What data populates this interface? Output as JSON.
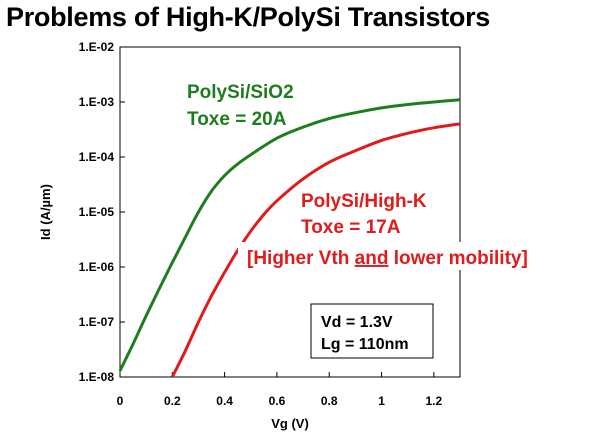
{
  "title": "Problems of High-K/PolySi Transistors",
  "chart_data": {
    "type": "line",
    "xlabel": "Vg (V)",
    "ylabel": "Id (A/µm)",
    "xlim": [
      0,
      1.3
    ],
    "ylim": [
      1e-08,
      0.01
    ],
    "yscale": "log",
    "grid": false,
    "x_ticks": [
      0,
      0.2,
      0.4,
      0.6,
      0.8,
      1,
      1.2
    ],
    "x_tick_labels": [
      "0",
      "0.2",
      "0.4",
      "0.6",
      "0.8",
      "1",
      "1.2"
    ],
    "y_ticks": [
      1e-08,
      1e-07,
      1e-06,
      1e-05,
      0.0001,
      0.001,
      0.01
    ],
    "y_tick_labels": [
      "1.E-08",
      "1.E-07",
      "1.E-06",
      "1.E-05",
      "1.E-04",
      "1.E-03",
      "1.E-02"
    ],
    "series": [
      {
        "name": "PolySi/SiO2",
        "color": "#1e7d1e",
        "x": [
          0,
          0.05,
          0.1,
          0.15,
          0.2,
          0.25,
          0.3,
          0.35,
          0.4,
          0.45,
          0.5,
          0.6,
          0.7,
          0.8,
          0.9,
          1.0,
          1.1,
          1.2,
          1.3
        ],
        "y": [
          1.3e-08,
          4e-08,
          1.3e-07,
          4e-07,
          1.2e-06,
          3.5e-06,
          1e-05,
          2.4e-05,
          4.6e-05,
          7.5e-05,
          0.00011,
          0.00022,
          0.00035,
          0.0005,
          0.00064,
          0.00078,
          0.0009,
          0.001,
          0.0011
        ]
      },
      {
        "name": "PolySi/High-K",
        "color": "#e01b1b",
        "x": [
          0.2,
          0.25,
          0.3,
          0.35,
          0.4,
          0.45,
          0.5,
          0.55,
          0.6,
          0.7,
          0.8,
          0.9,
          1.0,
          1.1,
          1.2,
          1.3
        ],
        "y": [
          1e-08,
          3e-08,
          1e-07,
          3e-07,
          8e-07,
          2e-06,
          4.5e-06,
          9e-06,
          1.6e-05,
          4e-05,
          8e-05,
          0.00013,
          0.0002,
          0.00027,
          0.00034,
          0.0004
        ]
      }
    ],
    "annotations": {
      "green_line1": "PolySi/SiO2",
      "green_line2": "Toxe = 20A",
      "red_line1": "PolySi/High-K",
      "red_line2": "Toxe = 17A",
      "red_line3_prefix": "[Higher Vth ",
      "red_line3_underlined": "and",
      "red_line3_suffix": " lower mobility]",
      "box_line1": "Vd = 1.3V",
      "box_line2": "Lg = 110nm"
    }
  }
}
